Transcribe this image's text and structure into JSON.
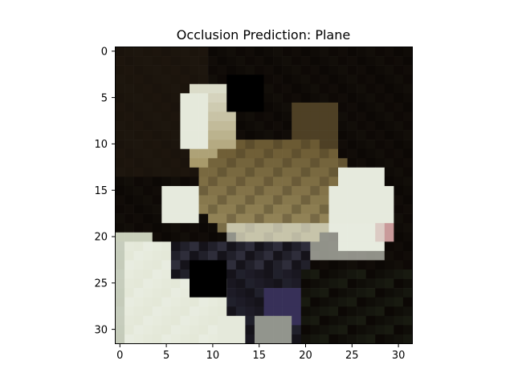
{
  "figure": {
    "title": "Occlusion Prediction: Plane",
    "x_ticks": [
      "0",
      "5",
      "10",
      "15",
      "20",
      "25",
      "30"
    ],
    "y_ticks": [
      "0",
      "5",
      "10",
      "15",
      "20",
      "25",
      "30"
    ]
  },
  "image": {
    "grid_size": 32,
    "x_range": [
      -0.5,
      31.5
    ],
    "y_range": [
      -0.5,
      31.5
    ],
    "y_inverted": true,
    "tick_values": [
      0,
      5,
      10,
      15,
      20,
      25,
      30
    ],
    "occlusion_patches": [
      {
        "x0": 12,
        "y0": 3,
        "w": 4,
        "h": 4
      },
      {
        "x0": 8,
        "y0": 23,
        "w": 4,
        "h": 4
      }
    ],
    "colors": {
      "background": "#0c0805",
      "fur_dark": "#3a2f1c",
      "fur_mid": "#6b5a33",
      "fur_light": "#a89a6b",
      "white_fur": "#e8ece0",
      "cream": "#dfe3cf",
      "shadow": "#15131a",
      "purple_glint": "#4a3f7a",
      "pink_nose": "#c99a9a",
      "occlusion": "#000000"
    }
  }
}
